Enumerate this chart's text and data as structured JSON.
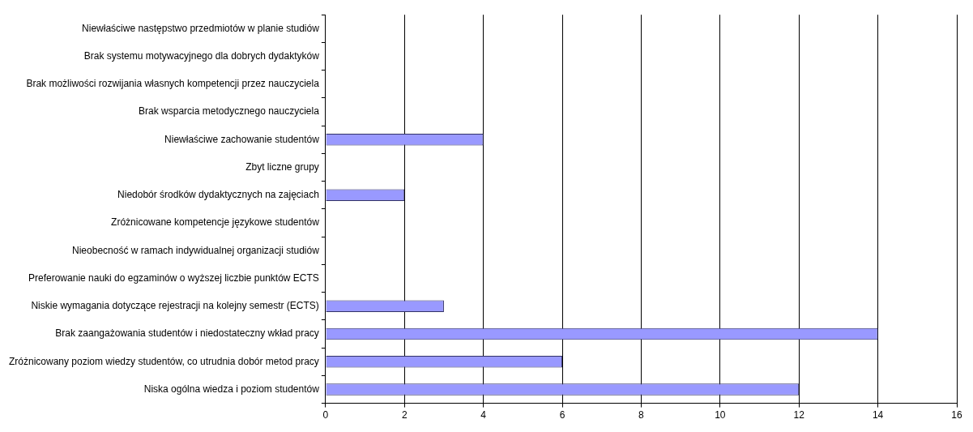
{
  "chart_data": {
    "type": "bar",
    "orientation": "horizontal",
    "categories": [
      "Niewłaściwe następstwo przedmiotów w planie studiów",
      "Brak systemu motywacyjnego dla dobrych dydaktyków",
      "Brak możliwości rozwijania własnych kompetencji przez nauczyciela",
      "Brak wsparcia metodycznego nauczyciela",
      "Niewłaściwe zachowanie studentów",
      "Zbyt liczne grupy",
      "Niedobór środków dydaktycznych na zajęciach",
      "Zróżnicowane kompetencje językowe studentów",
      "Nieobecność w ramach indywidualnej organizacji studiów",
      "Preferowanie nauki do egzaminów o wyższej liczbie punktów ECTS",
      "Niskie wymagania dotyczące rejestracji na kolejny semestr (ECTS)",
      "Brak zaangażowania studentów i niedostateczny wkład pracy",
      "Zróżnicowany poziom wiedzy studentów, co utrudnia dobór metod pracy",
      "Niska ogólna wiedza i poziom studentów"
    ],
    "values": [
      0,
      0,
      0,
      0,
      4,
      0,
      2,
      0,
      0,
      0,
      3,
      14,
      6,
      12
    ],
    "color": "#9999ff",
    "xlim": [
      0,
      16
    ],
    "xticks": [
      0,
      2,
      4,
      6,
      8,
      10,
      12,
      14,
      16
    ],
    "grid": "x",
    "legend": false
  }
}
